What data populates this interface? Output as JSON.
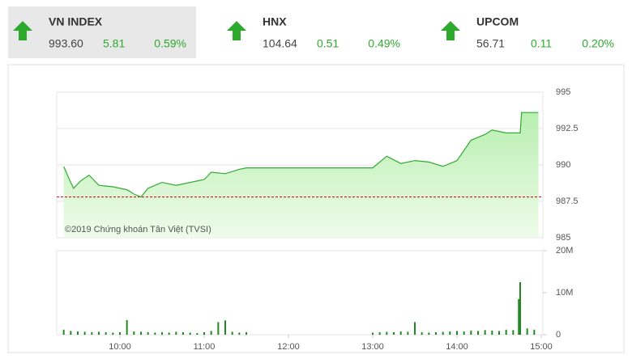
{
  "indices": [
    {
      "name": "VN INDEX",
      "value": "993.60",
      "change": "5.81",
      "percent": "0.59%"
    },
    {
      "name": "HNX",
      "value": "104.64",
      "change": "0.51",
      "percent": "0.49%"
    },
    {
      "name": "UPCOM",
      "value": "56.71",
      "change": "0.11",
      "percent": "0.20%"
    }
  ],
  "chart_data": [
    {
      "type": "line",
      "annotation": "©2019 Chứng khoán Tân Việt (TVSI)",
      "x": [
        "09:20",
        "09:24",
        "09:27",
        "09:32",
        "09:38",
        "09:45",
        "09:55",
        "10:05",
        "10:10",
        "10:15",
        "10:20",
        "10:30",
        "10:40",
        "10:50",
        "11:00",
        "11:05",
        "11:15",
        "11:25",
        "11:30",
        "13:00",
        "13:10",
        "13:20",
        "13:30",
        "13:40",
        "13:50",
        "14:00",
        "14:10",
        "14:20",
        "14:25",
        "14:35",
        "14:45",
        "14:46",
        "14:58"
      ],
      "values": [
        989.9,
        989.0,
        988.4,
        988.9,
        989.3,
        988.6,
        988.5,
        988.3,
        988.0,
        987.8,
        988.4,
        988.8,
        988.6,
        988.8,
        989.0,
        989.5,
        989.4,
        989.7,
        989.8,
        989.8,
        990.6,
        990.1,
        990.3,
        990.2,
        989.9,
        990.3,
        991.7,
        992.1,
        992.4,
        992.2,
        992.2,
        993.6,
        993.6
      ],
      "color": "#33aa33",
      "reference_value": 987.8,
      "reference_color": "#cc0000",
      "ylim": [
        985,
        995
      ],
      "yticks": [
        995,
        992.5,
        990,
        987.5,
        985
      ],
      "grid": true
    },
    {
      "type": "bar",
      "color": "#228822",
      "x": [
        "09:20",
        "09:25",
        "09:30",
        "09:35",
        "09:40",
        "09:45",
        "09:50",
        "09:55",
        "10:00",
        "10:05",
        "10:10",
        "10:15",
        "10:20",
        "10:25",
        "10:30",
        "10:35",
        "10:40",
        "10:45",
        "10:50",
        "10:55",
        "11:00",
        "11:05",
        "11:10",
        "11:15",
        "11:20",
        "11:25",
        "11:30",
        "13:00",
        "13:05",
        "13:10",
        "13:15",
        "13:20",
        "13:25",
        "13:30",
        "13:35",
        "13:40",
        "13:45",
        "13:50",
        "13:55",
        "14:00",
        "14:05",
        "14:10",
        "14:15",
        "14:20",
        "14:25",
        "14:30",
        "14:35",
        "14:40",
        "14:44",
        "14:45",
        "14:50",
        "14:55"
      ],
      "values": [
        1200000,
        900000,
        800000,
        700000,
        600000,
        700000,
        600000,
        500000,
        600000,
        3500000,
        800000,
        700000,
        600000,
        500000,
        600000,
        500000,
        700000,
        600000,
        500000,
        400000,
        600000,
        900000,
        3000000,
        3400000,
        700000,
        500000,
        600000,
        500000,
        600000,
        700000,
        600000,
        800000,
        700000,
        3000000,
        600000,
        500000,
        600000,
        700000,
        800000,
        900000,
        800000,
        1000000,
        900000,
        1100000,
        1000000,
        900000,
        1200000,
        1100000,
        8500000,
        12500000,
        1500000,
        1200000
      ],
      "ylim": [
        0,
        20000000
      ],
      "yticks": [
        {
          "value": 20000000,
          "label": "20M"
        },
        {
          "value": 10000000,
          "label": "10M"
        },
        0
      ],
      "xticks": [
        "10:00",
        "11:00",
        "12:00",
        "13:00",
        "14:00",
        "15:00"
      ]
    }
  ]
}
